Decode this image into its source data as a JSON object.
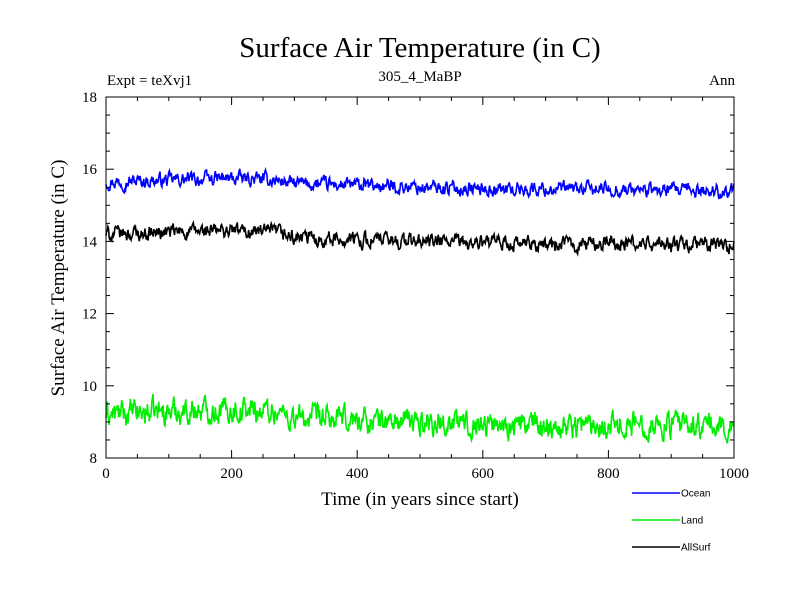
{
  "chart_data": {
    "type": "line",
    "title": "Surface Air Temperature (in C)",
    "subtitle": "305_4_MaBP",
    "left_note": "Expt = teXvj1",
    "right_note": "Ann",
    "xlabel": "Time (in years since start)",
    "ylabel": "Surface Air Temperature (in C)",
    "xlim": [
      0,
      1000
    ],
    "ylim": [
      8,
      18
    ],
    "x_ticks": [
      0,
      200,
      400,
      600,
      800,
      1000
    ],
    "y_ticks": [
      8,
      10,
      12,
      14,
      16,
      18
    ],
    "x_minor_step": 50,
    "y_minor_step": 0.5,
    "grid": false,
    "legend_position": "bottom-right, below plot",
    "sample_step_years": 10,
    "series": [
      {
        "name": "Ocean",
        "color": "#0000ff",
        "noise": 0.12,
        "x": [
          0,
          100,
          200,
          270,
          300,
          400,
          500,
          600,
          700,
          800,
          900,
          1000
        ],
        "values": [
          15.65,
          15.7,
          15.75,
          15.7,
          15.6,
          15.55,
          15.5,
          15.45,
          15.45,
          15.45,
          15.4,
          15.4
        ]
      },
      {
        "name": "Land",
        "color": "#00ee00",
        "noise": 0.22,
        "x": [
          0,
          100,
          200,
          270,
          300,
          400,
          500,
          600,
          700,
          800,
          900,
          1000
        ],
        "values": [
          9.2,
          9.3,
          9.35,
          9.3,
          9.1,
          9.05,
          9.0,
          8.95,
          8.9,
          8.95,
          8.9,
          8.85
        ]
      },
      {
        "name": "AllSurf",
        "color": "#000000",
        "noise": 0.13,
        "x": [
          0,
          100,
          200,
          270,
          300,
          400,
          500,
          600,
          700,
          800,
          900,
          1000
        ],
        "values": [
          14.2,
          14.25,
          14.3,
          14.25,
          14.1,
          14.05,
          14.0,
          13.95,
          13.9,
          13.95,
          13.9,
          13.9
        ]
      }
    ]
  }
}
